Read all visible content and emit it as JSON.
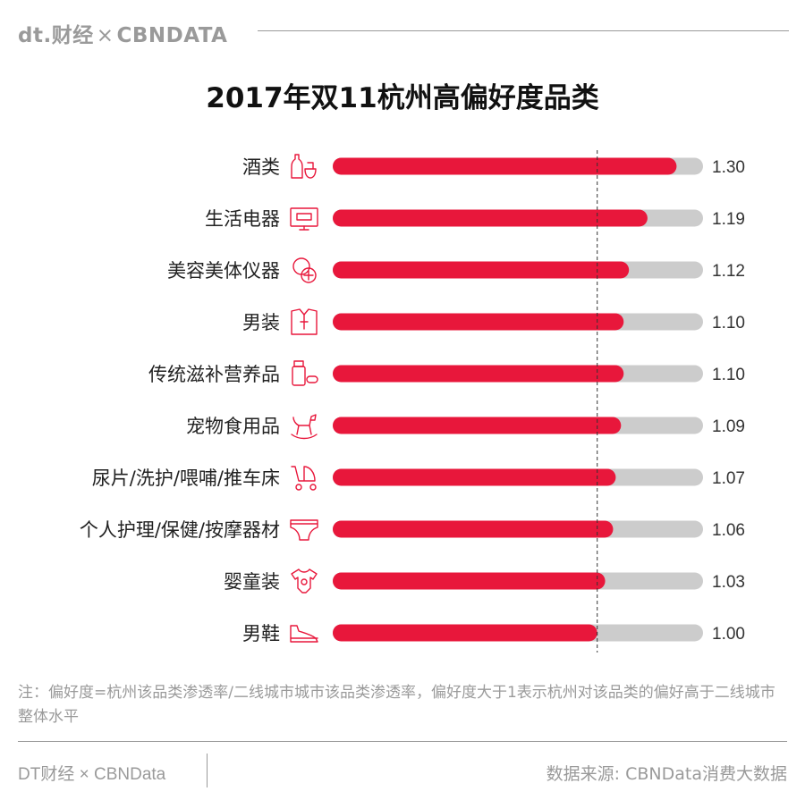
{
  "header": {
    "brand_dt": "dt.财经",
    "brand_sep": "×",
    "brand_cbn": "CBNDATA"
  },
  "chart_data": {
    "type": "bar",
    "orientation": "horizontal",
    "title": "2017年双11杭州高偏好度品类",
    "categories": [
      "酒类",
      "生活电器",
      "美容美体仪器",
      "男装",
      "传统滋补营养品",
      "宠物食用品",
      "尿片/洗护/喂哺/推车床",
      "个人护理/保健/按摩器材",
      "婴童装",
      "男鞋"
    ],
    "values": [
      1.3,
      1.19,
      1.12,
      1.1,
      1.1,
      1.09,
      1.07,
      1.06,
      1.03,
      1.0
    ],
    "value_labels": [
      "1.30",
      "1.19",
      "1.12",
      "1.10",
      "1.10",
      "1.09",
      "1.07",
      "1.06",
      "1.03",
      "1.00"
    ],
    "icons": [
      "liquor-bottle-icon",
      "tv-icon",
      "compact-mirror-icon",
      "shirt-icon",
      "supplement-bottle-icon",
      "rocking-horse-icon",
      "stroller-icon",
      "diaper-icon",
      "baby-onesie-icon",
      "shoe-icon"
    ],
    "xlim": [
      0,
      1.4
    ],
    "reference_line": 1.0,
    "bar_color": "#e8173b",
    "track_color": "#cccccc",
    "grid": false,
    "legend": false
  },
  "note": "注：偏好度=杭州该品类渗透率/二线城市城市该品类渗透率，偏好度大于1表示杭州对该品类的偏好高于二线城市整体水平",
  "footer": {
    "left": "DT财经 × CBNData",
    "right": "数据来源: CBNData消费大数据"
  }
}
